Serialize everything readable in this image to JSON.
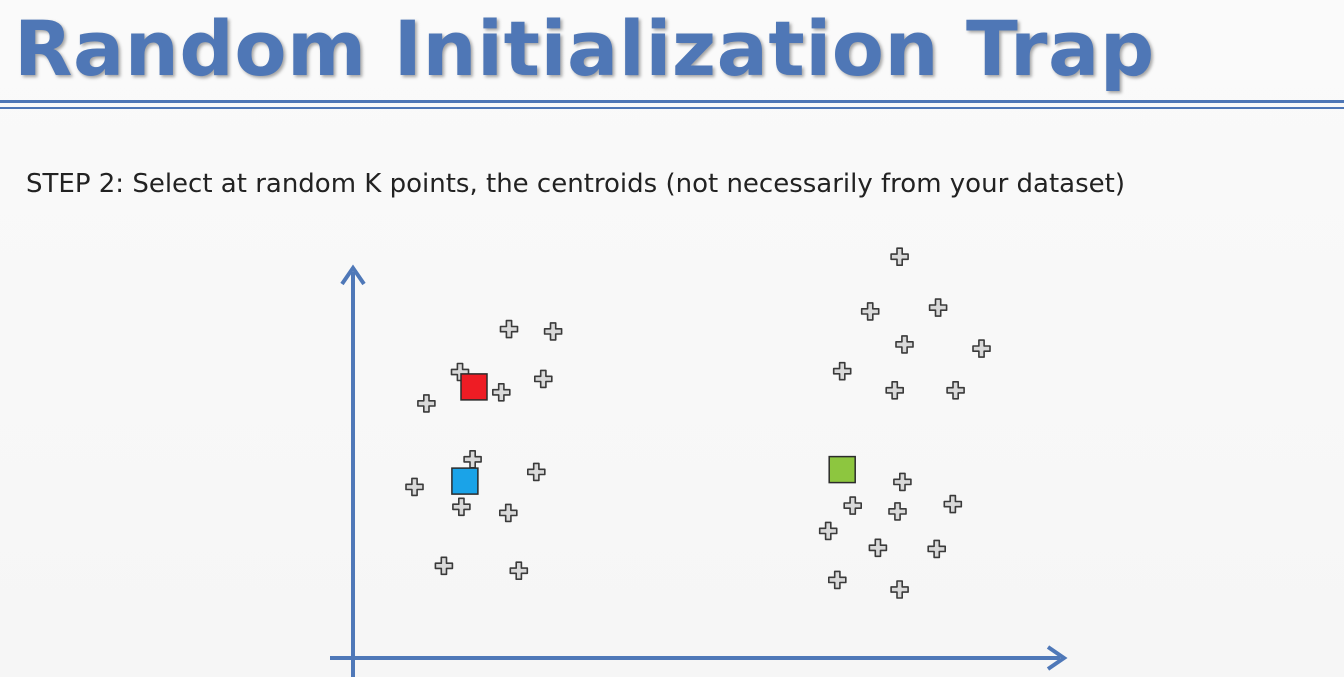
{
  "slide": {
    "title": "Random Initialization Trap",
    "step_label": "STEP 2:",
    "step_text": " Select at random K points, the centroids (not necessarily from your dataset)"
  },
  "colors": {
    "title": "#4f77b6",
    "axis": "#4f78b8",
    "point_fill": "#d9d9d9",
    "point_stroke": "#3a3a3a",
    "centroid_red": "#ee1c24",
    "centroid_blue": "#1aa3e8",
    "centroid_green": "#8dc63f"
  },
  "chart_data": {
    "type": "scatter",
    "title": "",
    "xlabel": "",
    "ylabel": "",
    "xlim": [
      0,
      100
    ],
    "ylim": [
      0,
      100
    ],
    "grid": false,
    "legend": "none",
    "series": [
      {
        "marker": "cross",
        "points": [
          [
            22.0,
            85.1
          ],
          [
            28.3,
            84.5
          ],
          [
            15.0,
            73.9
          ],
          [
            26.9,
            72.1
          ],
          [
            20.9,
            68.6
          ],
          [
            10.2,
            65.7
          ],
          [
            16.8,
            51.1
          ],
          [
            25.9,
            47.8
          ],
          [
            8.5,
            43.9
          ],
          [
            15.2,
            38.7
          ],
          [
            21.9,
            37.1
          ],
          [
            12.7,
            23.3
          ],
          [
            23.4,
            22.0
          ],
          [
            77.8,
            104.0
          ],
          [
            73.6,
            89.7
          ],
          [
            83.3,
            90.7
          ],
          [
            78.5,
            81.1
          ],
          [
            89.5,
            80.0
          ],
          [
            69.6,
            74.1
          ],
          [
            77.1,
            69.1
          ],
          [
            85.8,
            69.1
          ],
          [
            78.2,
            45.2
          ],
          [
            71.1,
            39.0
          ],
          [
            77.5,
            37.5
          ],
          [
            85.4,
            39.4
          ],
          [
            67.6,
            32.4
          ],
          [
            74.7,
            28.0
          ],
          [
            83.1,
            27.7
          ],
          [
            68.9,
            19.6
          ],
          [
            77.8,
            17.1
          ]
        ]
      },
      {
        "name": "",
        "marker": "square",
        "color": "#ee1c24",
        "points": [
          [
            17.0,
            70.0
          ]
        ]
      },
      {
        "name": "",
        "marker": "square",
        "color": "#1aa3e8",
        "points": [
          [
            15.7,
            45.4
          ]
        ]
      },
      {
        "name": "",
        "marker": "square",
        "color": "#8dc63f",
        "points": [
          [
            69.6,
            48.4
          ]
        ]
      }
    ]
  }
}
